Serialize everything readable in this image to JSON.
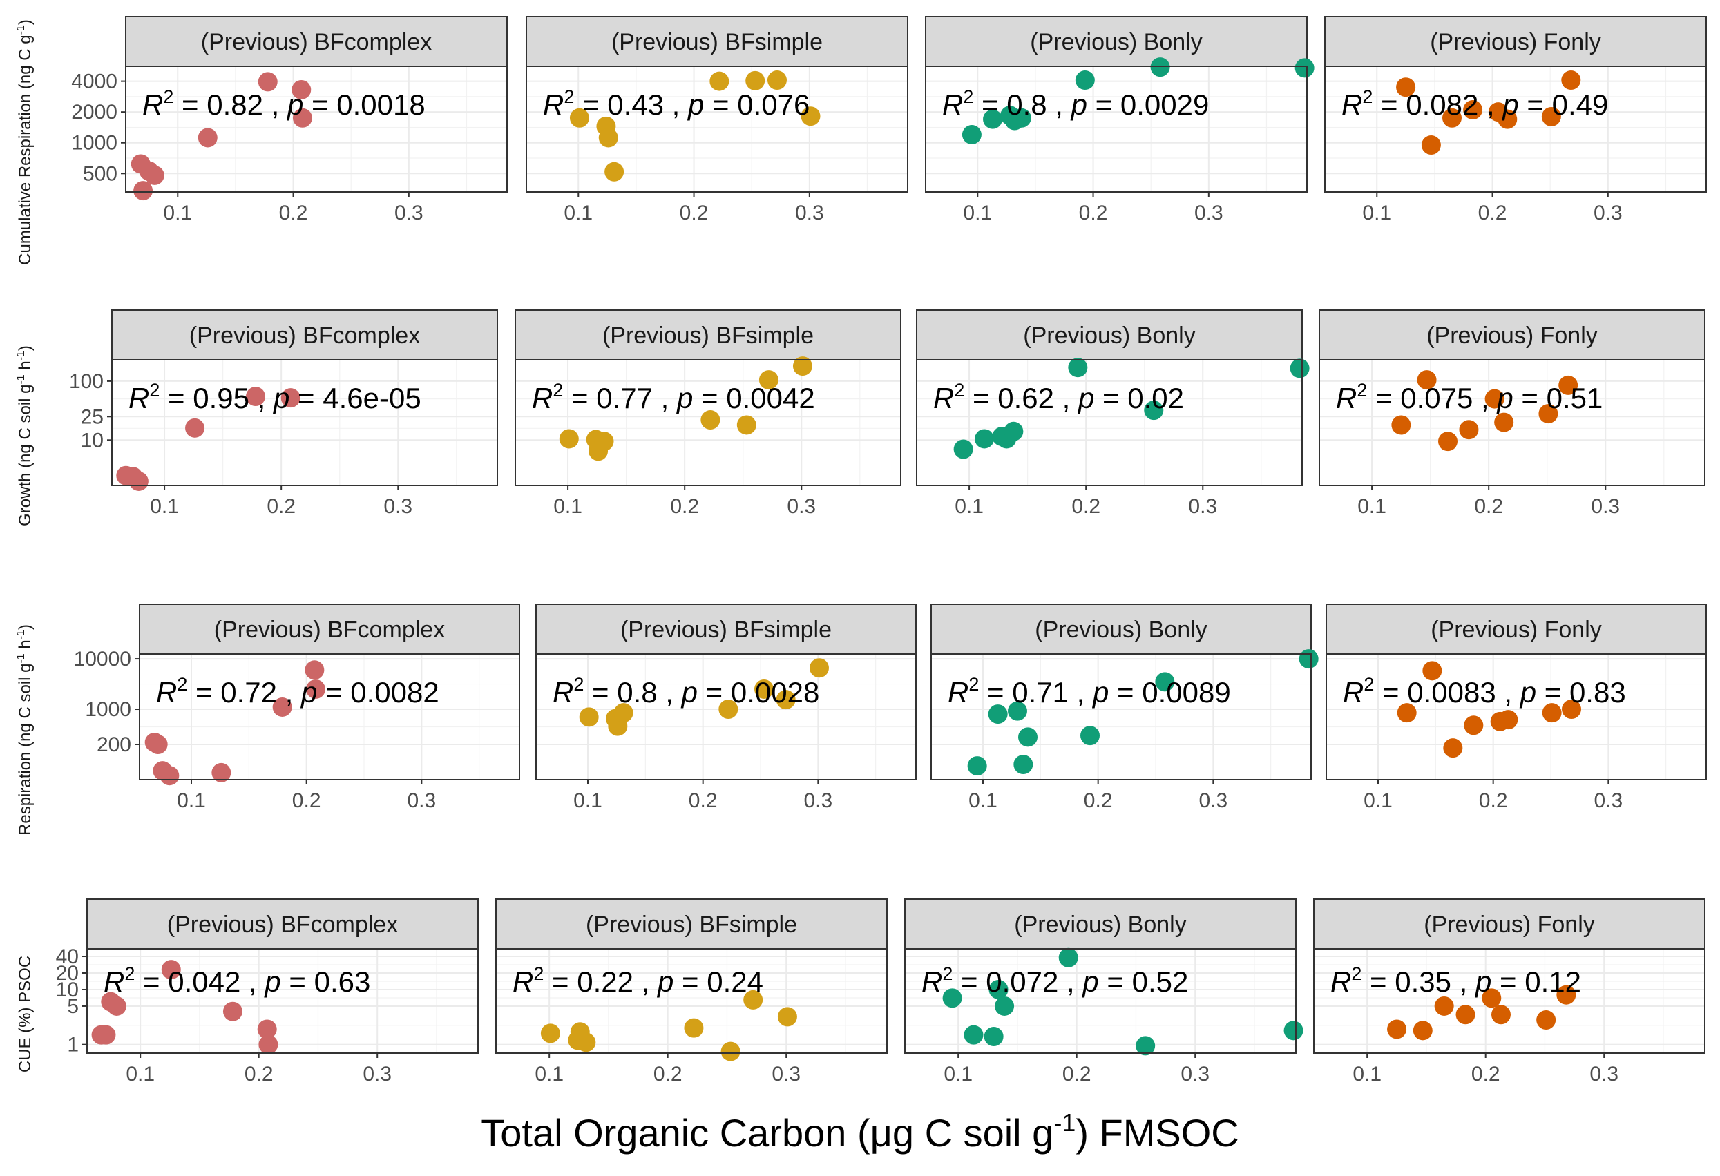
{
  "figure": {
    "xlabel_main": "Total Organic Carbon (μg C soil g",
    "xlabel_sup": "-1",
    "xlabel_end": ") FMSOC"
  },
  "colors": {
    "(Previous) BFcomplex": "#CC6666",
    "(Previous) BFsimple": "#D4A017",
    "(Previous) Bonly": "#119E77",
    "(Previous) Fonly": "#D55E00"
  },
  "chart_data": [
    {
      "type": "scatter",
      "ylabel": "Cumulative Respiration (ng C g",
      "ylabel_sup": "-1",
      "ylabel_end": ")",
      "yscale": "log",
      "yticks": [
        500,
        1000,
        2000,
        4000
      ],
      "ylim": [
        330,
        5600
      ],
      "xlim": [
        0.055,
        0.385
      ],
      "xticks": [
        0.1,
        0.2,
        0.3
      ],
      "panels": [
        {
          "strip": "(Previous) BFcomplex",
          "r2": "0.82",
          "p": "0.0018",
          "x": [
            0.068,
            0.075,
            0.08,
            0.07,
            0.126,
            0.178,
            0.207,
            0.208
          ],
          "y": [
            620,
            530,
            480,
            340,
            1120,
            3950,
            3300,
            1750
          ]
        },
        {
          "strip": "(Previous) BFsimple",
          "r2": "0.43",
          "p": "0.076",
          "x": [
            0.101,
            0.124,
            0.126,
            0.131,
            0.222,
            0.253,
            0.272,
            0.301
          ],
          "y": [
            1750,
            1450,
            1120,
            520,
            4000,
            4050,
            4100,
            1820
          ]
        },
        {
          "strip": "(Previous) Bonly",
          "r2": "0.8",
          "p": "0.0029",
          "x": [
            0.095,
            0.113,
            0.128,
            0.132,
            0.138,
            0.193,
            0.258,
            0.383
          ],
          "y": [
            1200,
            1700,
            1850,
            1650,
            1750,
            4100,
            5500,
            5400
          ]
        },
        {
          "strip": "(Previous) Fonly",
          "r2": "0.082",
          "p": "0.49",
          "x": [
            0.125,
            0.147,
            0.165,
            0.183,
            0.205,
            0.213,
            0.251,
            0.268
          ],
          "y": [
            3500,
            950,
            1750,
            2100,
            2000,
            1700,
            1800,
            4100
          ]
        }
      ]
    },
    {
      "type": "scatter",
      "ylabel": "Growth (ng C soil g",
      "ylabel_sup": "-1",
      "ylabel_mid": " h",
      "ylabel_sup2": "-1",
      "ylabel_end": ")",
      "yscale": "log",
      "yticks": [
        10,
        25,
        100
      ],
      "ylim": [
        1.7,
        230
      ],
      "xlim": [
        0.055,
        0.385
      ],
      "xticks": [
        0.1,
        0.2,
        0.3
      ],
      "panels": [
        {
          "strip": "(Previous) BFcomplex",
          "r2": "0.95",
          "p": "4.6e-05",
          "x": [
            0.067,
            0.073,
            0.078,
            0.126,
            0.178,
            0.208
          ],
          "y": [
            2.5,
            2.4,
            2.0,
            16,
            55,
            52
          ]
        },
        {
          "strip": "(Previous) BFsimple",
          "r2": "0.77",
          "p": "0.0042",
          "x": [
            0.101,
            0.124,
            0.126,
            0.131,
            0.222,
            0.253,
            0.272,
            0.301
          ],
          "y": [
            10.5,
            10.2,
            6.5,
            9.5,
            22,
            18,
            105,
            180
          ]
        },
        {
          "strip": "(Previous) Bonly",
          "r2": "0.62",
          "p": "0.02",
          "x": [
            0.095,
            0.113,
            0.128,
            0.132,
            0.138,
            0.193,
            0.258,
            0.383
          ],
          "y": [
            7,
            10.5,
            11.5,
            10.5,
            14,
            170,
            32,
            165
          ]
        },
        {
          "strip": "(Previous) Fonly",
          "r2": "0.075",
          "p": "0.51",
          "x": [
            0.125,
            0.147,
            0.165,
            0.183,
            0.205,
            0.213,
            0.251,
            0.268
          ],
          "y": [
            18,
            105,
            9.5,
            15,
            50,
            20,
            28,
            85
          ]
        }
      ]
    },
    {
      "type": "scatter",
      "ylabel": "Respiration (ng C soil g",
      "ylabel_sup": "-1",
      "ylabel_mid": " h",
      "ylabel_sup2": "-1",
      "ylabel_end": ")",
      "yscale": "log",
      "yticks": [
        200,
        1000,
        10000
      ],
      "ylim": [
        40,
        12500
      ],
      "xlim": [
        0.055,
        0.385
      ],
      "xticks": [
        0.1,
        0.2,
        0.3
      ],
      "panels": [
        {
          "strip": "(Previous) BFcomplex",
          "r2": "0.72",
          "p": "0.0082",
          "x": [
            0.068,
            0.071,
            0.075,
            0.081,
            0.126,
            0.179,
            0.207,
            0.208
          ],
          "y": [
            220,
            200,
            60,
            48,
            55,
            1100,
            6000,
            2500
          ]
        },
        {
          "strip": "(Previous) BFsimple",
          "r2": "0.8",
          "p": "0.0028",
          "x": [
            0.101,
            0.124,
            0.126,
            0.131,
            0.222,
            0.253,
            0.272,
            0.301
          ],
          "y": [
            700,
            650,
            460,
            850,
            1000,
            2500,
            1550,
            6600
          ]
        },
        {
          "strip": "(Previous) Bonly",
          "r2": "0.71",
          "p": "0.0089",
          "x": [
            0.095,
            0.113,
            0.13,
            0.135,
            0.139,
            0.193,
            0.258,
            0.383
          ],
          "y": [
            75,
            800,
            920,
            80,
            280,
            300,
            3500,
            10000
          ]
        },
        {
          "strip": "(Previous) Fonly",
          "r2": "0.0083",
          "p": "0.83",
          "x": [
            0.125,
            0.147,
            0.165,
            0.183,
            0.206,
            0.213,
            0.251,
            0.268
          ],
          "y": [
            850,
            5800,
            170,
            480,
            570,
            620,
            850,
            1000
          ]
        }
      ]
    },
    {
      "type": "scatter",
      "ylabel": "CUE (%) PSOC",
      "yscale": "log",
      "yticks": [
        1,
        5,
        10,
        20,
        40
      ],
      "ylim": [
        0.7,
        55
      ],
      "xlim": [
        0.055,
        0.385
      ],
      "xticks": [
        0.1,
        0.2,
        0.3
      ],
      "panels": [
        {
          "strip": "(Previous) BFcomplex",
          "r2": "0.042",
          "p": "0.63",
          "x": [
            0.067,
            0.071,
            0.075,
            0.08,
            0.126,
            0.178,
            0.207,
            0.208
          ],
          "y": [
            1.5,
            1.5,
            6.0,
            5.0,
            23,
            4.0,
            1.9,
            1.0
          ]
        },
        {
          "strip": "(Previous) BFsimple",
          "r2": "0.22",
          "p": "0.24",
          "x": [
            0.101,
            0.124,
            0.126,
            0.131,
            0.222,
            0.253,
            0.272,
            0.301
          ],
          "y": [
            1.6,
            1.2,
            1.7,
            1.1,
            2.0,
            0.75,
            6.5,
            3.2
          ]
        },
        {
          "strip": "(Previous) Bonly",
          "r2": "0.072",
          "p": "0.52",
          "x": [
            0.095,
            0.113,
            0.13,
            0.134,
            0.139,
            0.193,
            0.258,
            0.383
          ],
          "y": [
            7.0,
            1.5,
            1.4,
            10,
            5.0,
            38,
            0.95,
            1.8
          ]
        },
        {
          "strip": "(Previous) Fonly",
          "r2": "0.35",
          "p": "0.12",
          "x": [
            0.125,
            0.147,
            0.165,
            0.183,
            0.205,
            0.213,
            0.251,
            0.268
          ],
          "y": [
            1.9,
            1.8,
            5.0,
            3.5,
            7.0,
            3.5,
            2.8,
            8.0
          ]
        }
      ]
    }
  ]
}
